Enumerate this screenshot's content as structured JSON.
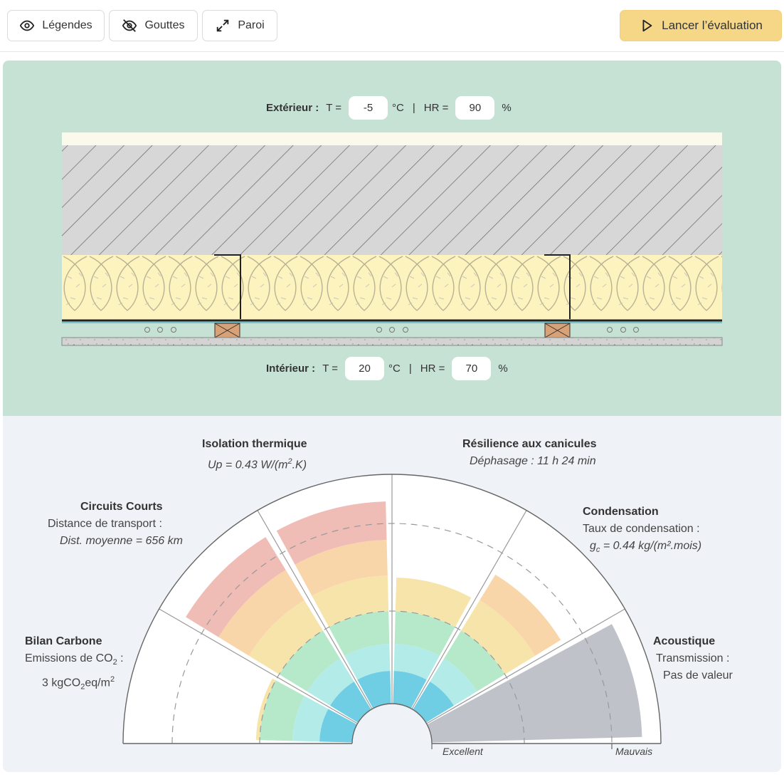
{
  "toolbar": {
    "legends": {
      "label": "Légendes",
      "icon": "eye-icon"
    },
    "drops": {
      "label": "Gouttes",
      "icon": "eye-off-icon"
    },
    "wall": {
      "label": "Paroi",
      "icon": "expand-icon"
    },
    "run": {
      "label": "Lancer l’évaluation",
      "icon": "play-icon"
    }
  },
  "exterior": {
    "label": "Extérieur :",
    "t_label": "T =",
    "t_value": "-5",
    "t_unit": "°C",
    "sep": "|",
    "hr_label": "HR =",
    "hr_value": "90",
    "hr_unit": "%"
  },
  "interior": {
    "label": "Intérieur :",
    "t_label": "T =",
    "t_value": "20",
    "t_unit": "°C",
    "sep": "|",
    "hr_label": "HR =",
    "hr_value": "70",
    "hr_unit": "%"
  },
  "criteria": {
    "carbon": {
      "title": "Bilan Carbone",
      "line1_pre": "Emissions de CO",
      "line1_sub": "2",
      "line1_post": " :",
      "value_pre": "3  kgCO",
      "value_sub": "2",
      "value_mid": "eq/m",
      "value_sup": "2"
    },
    "circuits": {
      "title": "Circuits Courts",
      "line1": "Distance de transport :",
      "value": "Dist. moyenne = 656 km"
    },
    "thermal": {
      "title": "Isolation thermique",
      "value_pre": "Up = 0.43 W/(m",
      "value_sup": "2",
      "value_post": ".K)"
    },
    "heatwave": {
      "title": "Résilience aux canicules",
      "value": "Déphasage : 11 h 24 min"
    },
    "condensation": {
      "title": "Condensation",
      "line1": "Taux de condensation :",
      "value_g": "g",
      "value_sub": "c",
      "value_post": " = 0.44 kg/(m²",
      "value_end": ".mois)"
    },
    "acoustic": {
      "title": "Acoustique",
      "line1": "Transmission :",
      "value": "Pas de valeur"
    }
  },
  "scale": {
    "excellent": "Excellent",
    "bad": "Mauvais"
  },
  "ratings": {
    "carbon": 0.42,
    "circuits": 0.93,
    "thermal": 0.96,
    "heatwave": 0.55,
    "condensation": 0.69,
    "acoustic": null
  },
  "colors": {
    "band1": "#6fcde4",
    "band2": "#b3ebe9",
    "band3": "#b6e9c9",
    "band4": "#f7e4ab",
    "band5": "#f9d6a9",
    "band6": "#efbcb6",
    "no_value": "#bfc3c9",
    "insulation": "#fdf3be",
    "concrete": "#d7d7d7",
    "top_panel": "#c6e2d5",
    "bottom_panel": "#eff2f7",
    "run_button": "#f5d787"
  }
}
